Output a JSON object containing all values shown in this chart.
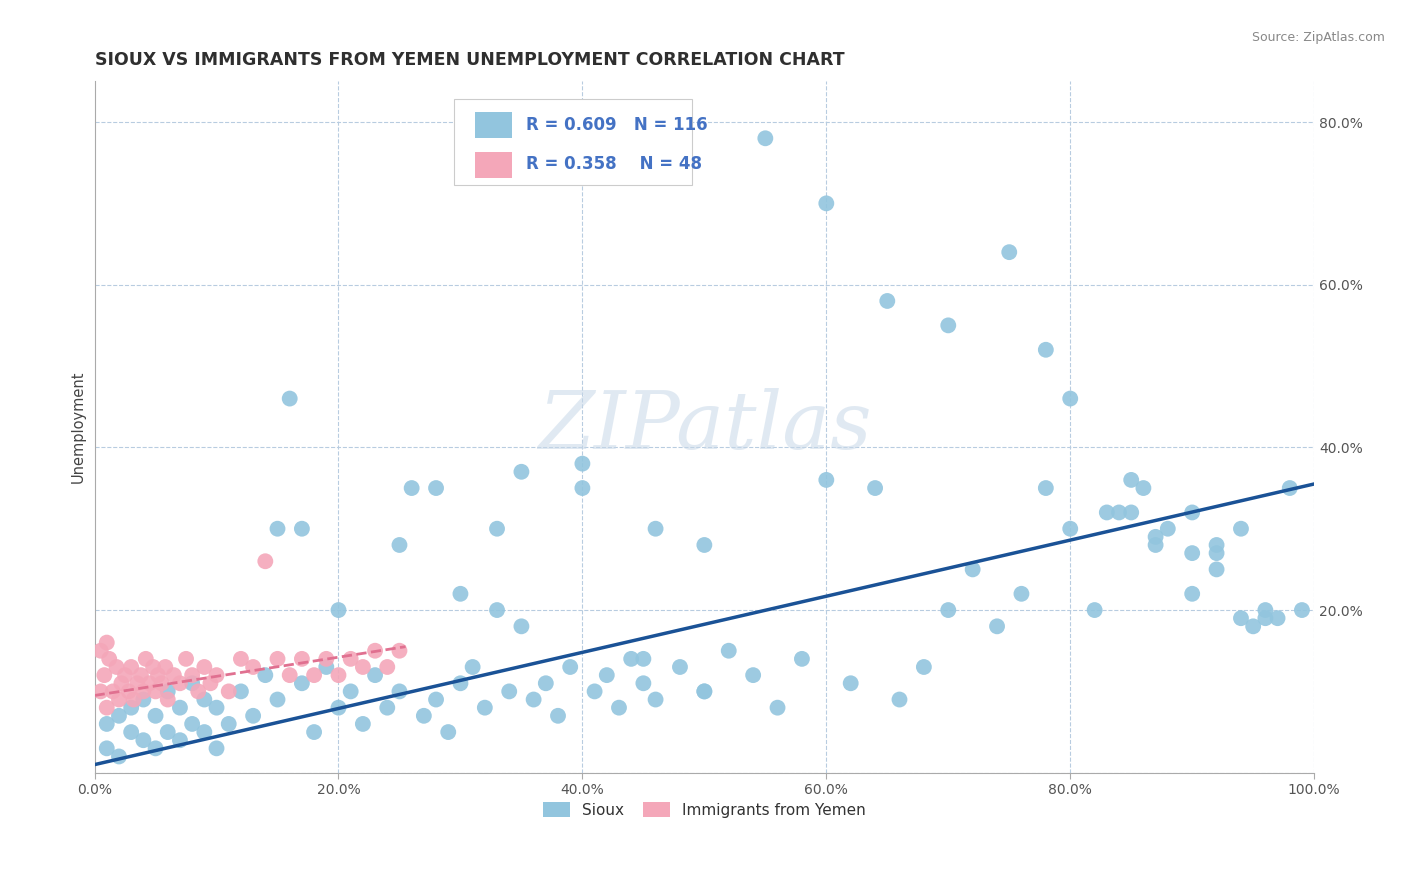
{
  "title": "SIOUX VS IMMIGRANTS FROM YEMEN UNEMPLOYMENT CORRELATION CHART",
  "source": "Source: ZipAtlas.com",
  "ylabel": "Unemployment",
  "xlim": [
    0,
    1.0
  ],
  "ylim": [
    0,
    0.85
  ],
  "xtick_vals": [
    0.0,
    0.2,
    0.4,
    0.6,
    0.8,
    1.0
  ],
  "xtick_labels": [
    "0.0%",
    "20.0%",
    "40.0%",
    "60.0%",
    "80.0%",
    "100.0%"
  ],
  "ytick_vals": [
    0.0,
    0.2,
    0.4,
    0.6,
    0.8
  ],
  "ytick_labels": [
    "",
    "20.0%",
    "40.0%",
    "60.0%",
    "80.0%"
  ],
  "blue_color": "#92C5DE",
  "pink_color": "#F4A7B9",
  "blue_edge_color": "#6AAEC8",
  "pink_edge_color": "#E890A8",
  "blue_line_color": "#1A5296",
  "pink_line_color": "#E07090",
  "legend_text_color": "#4472C4",
  "watermark": "ZIPatlas",
  "watermark_zip_color": "#C8D8E8",
  "watermark_atlas_color": "#A8C0D0",
  "R_blue": 0.609,
  "N_blue": 116,
  "R_pink": 0.358,
  "N_pink": 48,
  "blue_line_x0": 0.0,
  "blue_line_y0": 0.01,
  "blue_line_x1": 1.0,
  "blue_line_y1": 0.355,
  "pink_line_x0": 0.0,
  "pink_line_y0": 0.095,
  "pink_line_x1": 0.255,
  "pink_line_y1": 0.155,
  "blue_scatter_x": [
    0.01,
    0.01,
    0.02,
    0.02,
    0.03,
    0.03,
    0.04,
    0.04,
    0.05,
    0.05,
    0.06,
    0.06,
    0.07,
    0.07,
    0.08,
    0.08,
    0.09,
    0.09,
    0.1,
    0.1,
    0.11,
    0.12,
    0.13,
    0.14,
    0.15,
    0.16,
    0.17,
    0.18,
    0.19,
    0.2,
    0.21,
    0.22,
    0.23,
    0.24,
    0.25,
    0.26,
    0.27,
    0.28,
    0.29,
    0.3,
    0.31,
    0.32,
    0.33,
    0.34,
    0.35,
    0.36,
    0.37,
    0.38,
    0.39,
    0.4,
    0.41,
    0.42,
    0.43,
    0.44,
    0.45,
    0.46,
    0.48,
    0.5,
    0.52,
    0.54,
    0.56,
    0.58,
    0.6,
    0.62,
    0.64,
    0.66,
    0.68,
    0.7,
    0.72,
    0.74,
    0.76,
    0.78,
    0.8,
    0.82,
    0.84,
    0.86,
    0.88,
    0.9,
    0.92,
    0.94,
    0.96,
    0.98,
    0.17,
    0.28,
    0.33,
    0.4,
    0.46,
    0.5,
    0.55,
    0.6,
    0.65,
    0.7,
    0.75,
    0.78,
    0.8,
    0.83,
    0.85,
    0.87,
    0.9,
    0.92,
    0.95,
    0.97,
    0.99,
    0.85,
    0.87,
    0.9,
    0.92,
    0.94,
    0.96,
    0.15,
    0.2,
    0.25,
    0.3,
    0.35,
    0.45,
    0.5
  ],
  "blue_scatter_y": [
    0.03,
    0.06,
    0.02,
    0.07,
    0.05,
    0.08,
    0.04,
    0.09,
    0.03,
    0.07,
    0.05,
    0.1,
    0.04,
    0.08,
    0.06,
    0.11,
    0.05,
    0.09,
    0.03,
    0.08,
    0.06,
    0.1,
    0.07,
    0.12,
    0.09,
    0.46,
    0.11,
    0.05,
    0.13,
    0.08,
    0.1,
    0.06,
    0.12,
    0.08,
    0.1,
    0.35,
    0.07,
    0.09,
    0.05,
    0.11,
    0.13,
    0.08,
    0.3,
    0.1,
    0.37,
    0.09,
    0.11,
    0.07,
    0.13,
    0.38,
    0.1,
    0.12,
    0.08,
    0.14,
    0.11,
    0.09,
    0.13,
    0.1,
    0.15,
    0.12,
    0.08,
    0.14,
    0.36,
    0.11,
    0.35,
    0.09,
    0.13,
    0.2,
    0.25,
    0.18,
    0.22,
    0.35,
    0.3,
    0.2,
    0.32,
    0.35,
    0.3,
    0.27,
    0.27,
    0.3,
    0.2,
    0.35,
    0.3,
    0.35,
    0.2,
    0.35,
    0.3,
    0.28,
    0.78,
    0.7,
    0.58,
    0.55,
    0.64,
    0.52,
    0.46,
    0.32,
    0.36,
    0.28,
    0.32,
    0.28,
    0.18,
    0.19,
    0.2,
    0.32,
    0.29,
    0.22,
    0.25,
    0.19,
    0.19,
    0.3,
    0.2,
    0.28,
    0.22,
    0.18,
    0.14,
    0.1
  ],
  "pink_scatter_x": [
    0.005,
    0.008,
    0.01,
    0.012,
    0.015,
    0.018,
    0.02,
    0.022,
    0.025,
    0.028,
    0.03,
    0.032,
    0.035,
    0.038,
    0.04,
    0.042,
    0.045,
    0.048,
    0.05,
    0.052,
    0.055,
    0.058,
    0.06,
    0.065,
    0.07,
    0.075,
    0.08,
    0.085,
    0.09,
    0.095,
    0.1,
    0.11,
    0.12,
    0.13,
    0.14,
    0.15,
    0.16,
    0.17,
    0.18,
    0.19,
    0.2,
    0.21,
    0.22,
    0.23,
    0.24,
    0.25,
    0.005,
    0.01
  ],
  "pink_scatter_y": [
    0.1,
    0.12,
    0.08,
    0.14,
    0.1,
    0.13,
    0.09,
    0.11,
    0.12,
    0.1,
    0.13,
    0.09,
    0.11,
    0.12,
    0.1,
    0.14,
    0.11,
    0.13,
    0.1,
    0.12,
    0.11,
    0.13,
    0.09,
    0.12,
    0.11,
    0.14,
    0.12,
    0.1,
    0.13,
    0.11,
    0.12,
    0.1,
    0.14,
    0.13,
    0.26,
    0.14,
    0.12,
    0.14,
    0.12,
    0.14,
    0.12,
    0.14,
    0.13,
    0.15,
    0.13,
    0.15,
    0.15,
    0.16
  ]
}
